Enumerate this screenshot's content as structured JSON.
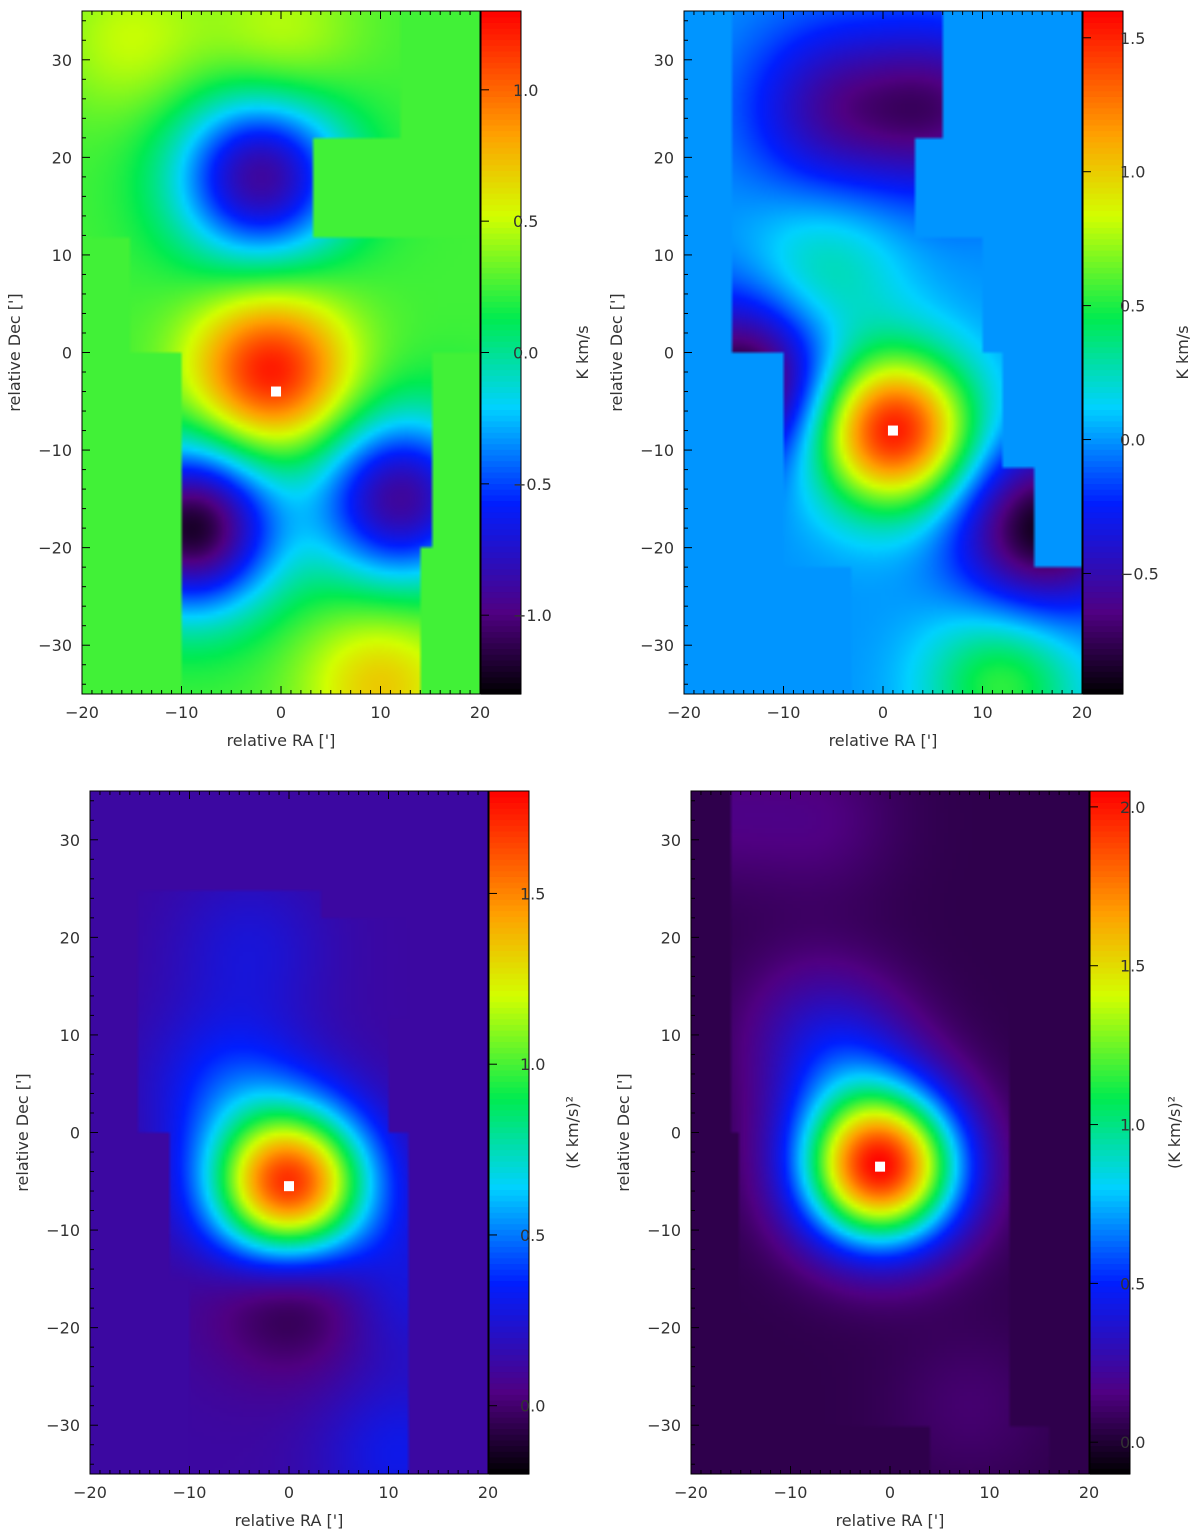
{
  "chart_data": [
    {
      "type": "heatmap",
      "panel": "top-left",
      "title": "",
      "xlabel": "relative RA [']",
      "ylabel": "relative Dec [']",
      "xlim": [
        -20,
        20
      ],
      "ylim": [
        -35,
        35
      ],
      "xticks": [
        -20,
        -10,
        0,
        10,
        20
      ],
      "yticks": [
        -30,
        -20,
        -10,
        0,
        10,
        20,
        30
      ],
      "colorbar": {
        "label": "K km/s",
        "range": [
          -1.3,
          1.3
        ],
        "ticks": [
          -1.0,
          -0.5,
          0.0,
          0.5,
          1.0
        ],
        "tick_labels": [
          "−1.0",
          "−0.5",
          "0.0",
          "0.5",
          "1.0"
        ],
        "colormap": "rainbow"
      },
      "background_value": 0.25,
      "peak": {
        "x": -0.5,
        "y": -4,
        "value": 1.3
      },
      "features": [
        {
          "kind": "maximum",
          "x": -1,
          "y": -2,
          "value": 1.25
        },
        {
          "kind": "maximum",
          "x": -15,
          "y": 32,
          "value": 0.5
        },
        {
          "kind": "maximum",
          "x": 0,
          "y": 32,
          "value": 0.5
        },
        {
          "kind": "maximum",
          "x": 10,
          "y": -34,
          "value": 0.7
        },
        {
          "kind": "minimum",
          "x": -9,
          "y": -18,
          "value": -1.2
        },
        {
          "kind": "minimum",
          "x": -2,
          "y": 18,
          "value": -0.9
        },
        {
          "kind": "minimum",
          "x": 12,
          "y": -15,
          "value": -0.9
        }
      ],
      "coverage": [
        [
          -20,
          12,
          35
        ],
        [
          -20,
          3,
          22
        ],
        [
          -15,
          20,
          12
        ],
        [
          -10,
          15,
          0
        ],
        [
          -10,
          14,
          -20
        ],
        [
          3,
          20,
          -35
        ]
      ]
    },
    {
      "type": "heatmap",
      "panel": "top-right",
      "title": "",
      "xlabel": "relative RA [']",
      "ylabel": "relative Dec [']",
      "xlim": [
        -20,
        20
      ],
      "ylim": [
        -35,
        35
      ],
      "xticks": [
        -20,
        -10,
        0,
        10,
        20
      ],
      "yticks": [
        -30,
        -20,
        -10,
        0,
        10,
        20,
        30
      ],
      "colorbar": {
        "label": "K km/s",
        "range": [
          -0.95,
          1.6
        ],
        "ticks": [
          -0.5,
          0.0,
          0.5,
          1.0,
          1.5
        ],
        "tick_labels": [
          "−0.5",
          "0.0",
          "0.5",
          "1.0",
          "1.5"
        ],
        "colormap": "rainbow"
      },
      "background_value": 0.0,
      "peak": {
        "x": 1,
        "y": -8,
        "value": 1.6
      },
      "features": [
        {
          "kind": "maximum",
          "x": 1,
          "y": -8,
          "value": 1.55
        },
        {
          "kind": "maximum",
          "x": -6,
          "y": 8,
          "value": 0.3
        },
        {
          "kind": "maximum",
          "x": 12,
          "y": -34,
          "value": 0.55
        },
        {
          "kind": "minimum",
          "x": -14,
          "y": -3,
          "value": -0.9
        },
        {
          "kind": "minimum",
          "x": 16,
          "y": -18,
          "value": -0.9
        },
        {
          "kind": "minimum",
          "x": -5,
          "y": 25,
          "value": -0.5
        },
        {
          "kind": "minimum",
          "x": 6,
          "y": 25,
          "value": -0.6
        }
      ],
      "coverage": [
        [
          -15,
          6,
          35
        ],
        [
          -15,
          3,
          22
        ],
        [
          -15,
          10,
          12
        ],
        [
          -10,
          12,
          0
        ],
        [
          -10,
          15,
          -12
        ],
        [
          -3,
          20,
          -22
        ],
        [
          -3,
          20,
          -35
        ]
      ]
    },
    {
      "type": "heatmap",
      "panel": "bottom-left",
      "title": "",
      "xlabel": "relative RA [']",
      "ylabel": "relative Dec [']",
      "xlim": [
        -20,
        20
      ],
      "ylim": [
        -35,
        35
      ],
      "xticks": [
        -20,
        -10,
        0,
        10,
        20
      ],
      "yticks": [
        -30,
        -20,
        -10,
        0,
        10,
        20,
        30
      ],
      "colorbar": {
        "label": "(K km/s)²",
        "range": [
          -0.2,
          1.8
        ],
        "ticks": [
          0.0,
          0.5,
          1.0,
          1.5
        ],
        "tick_labels": [
          "0.0",
          "0.5",
          "1.0",
          "1.5"
        ],
        "colormap": "rainbow"
      },
      "background_value": 0.12,
      "peak": {
        "x": 0,
        "y": -5.5,
        "value": 1.8
      },
      "features": [
        {
          "kind": "maximum",
          "x": 0,
          "y": -5.5,
          "value": 1.75
        },
        {
          "kind": "maximum",
          "x": -6,
          "y": 5,
          "value": 0.35
        },
        {
          "kind": "maximum",
          "x": -4,
          "y": 19,
          "value": 0.25
        },
        {
          "kind": "maximum",
          "x": 11,
          "y": -33,
          "value": 0.3
        },
        {
          "kind": "maximum",
          "x": 11,
          "y": -16,
          "value": 0.3
        },
        {
          "kind": "minimum",
          "x": 1,
          "y": -15,
          "value": -0.2
        }
      ],
      "coverage": [
        [
          -15,
          3,
          25
        ],
        [
          -15,
          12,
          22
        ],
        [
          -15,
          10,
          12
        ],
        [
          -12,
          12,
          0
        ],
        [
          -10,
          12,
          -15
        ],
        [
          3,
          20,
          -35
        ]
      ]
    },
    {
      "type": "heatmap",
      "panel": "bottom-right",
      "title": "",
      "xlabel": "relative RA [']",
      "ylabel": "relative Dec [']",
      "xlim": [
        -20,
        20
      ],
      "ylim": [
        -35,
        35
      ],
      "xticks": [
        -20,
        -10,
        0,
        10,
        20
      ],
      "yticks": [
        -30,
        -20,
        -10,
        0,
        10,
        20,
        30
      ],
      "colorbar": {
        "label": "(K km/s)²",
        "range": [
          -0.1,
          2.05
        ],
        "ticks": [
          0.0,
          0.5,
          1.0,
          1.5,
          2.0
        ],
        "tick_labels": [
          "0.0",
          "0.5",
          "1.0",
          "1.5",
          "2.0"
        ],
        "colormap": "rainbow"
      },
      "background_value": 0.05,
      "peak": {
        "x": -1,
        "y": -3.5,
        "value": 2.05
      },
      "features": [
        {
          "kind": "maximum",
          "x": -1,
          "y": -3.5,
          "value": 2.0
        },
        {
          "kind": "maximum",
          "x": -5,
          "y": 7,
          "value": 0.35
        },
        {
          "kind": "maximum",
          "x": -8,
          "y": 12,
          "value": 0.15
        },
        {
          "kind": "maximum",
          "x": -18,
          "y": 33,
          "value": 0.15
        },
        {
          "kind": "maximum",
          "x": -7,
          "y": 32,
          "value": 0.15
        },
        {
          "kind": "maximum",
          "x": 8,
          "y": -28,
          "value": 0.12
        }
      ],
      "coverage": [
        [
          -16,
          10,
          35
        ],
        [
          -16,
          12,
          22
        ],
        [
          -15,
          12,
          0
        ],
        [
          -12,
          12,
          -20
        ],
        [
          4,
          16,
          -30
        ]
      ]
    }
  ]
}
